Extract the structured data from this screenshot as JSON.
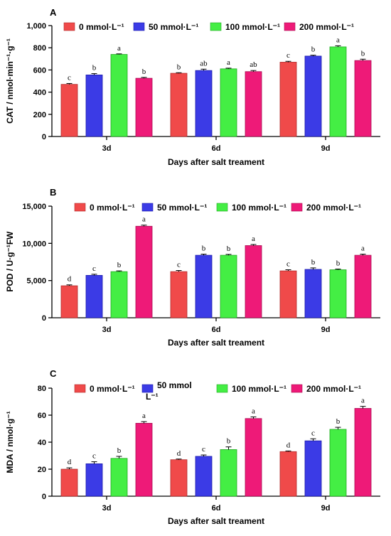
{
  "chart_data": [
    {
      "type": "bar",
      "panel": "A",
      "ylabel": "CAT / nmol·min⁻¹·g⁻¹",
      "xlabel": "Days after salt treament",
      "categories": [
        "3d",
        "6d",
        "9d"
      ],
      "ylim": [
        0,
        1000
      ],
      "yticks": [
        "0",
        "200",
        "400",
        "600",
        "800",
        "1,000"
      ],
      "ytick_values": [
        0,
        200,
        400,
        600,
        800,
        1000
      ],
      "series": [
        {
          "name": "0 mmol·L⁻¹",
          "values": [
            470,
            570,
            670
          ],
          "errors": [
            8,
            5,
            8
          ],
          "letters": [
            "c",
            "b",
            "c"
          ]
        },
        {
          "name": "50 mmol·L⁻¹",
          "values": [
            555,
            595,
            725
          ],
          "errors": [
            12,
            12,
            8
          ],
          "letters": [
            "b",
            "ab",
            "b"
          ]
        },
        {
          "name": "100 mmol·L⁻¹",
          "values": [
            740,
            610,
            808
          ],
          "errors": [
            5,
            6,
            10
          ],
          "letters": [
            "a",
            "a",
            "a"
          ]
        },
        {
          "name": "200 mmol·L⁻¹",
          "values": [
            525,
            585,
            685
          ],
          "errors": [
            8,
            10,
            12
          ],
          "letters": [
            "b",
            "ab",
            "b"
          ]
        }
      ]
    },
    {
      "type": "bar",
      "panel": "B",
      "ylabel": "POD / U·g⁻¹FW",
      "xlabel": "Days after salt treament",
      "categories": [
        "3d",
        "6d",
        "9d"
      ],
      "ylim": [
        0,
        15000
      ],
      "yticks": [
        "0",
        "5,000",
        "10,000",
        "15,000"
      ],
      "ytick_values": [
        0,
        5000,
        10000,
        15000
      ],
      "series": [
        {
          "name": "0 mmol·L⁻¹",
          "values": [
            4300,
            6200,
            6300
          ],
          "errors": [
            120,
            150,
            150
          ],
          "letters": [
            "d",
            "c",
            "c"
          ]
        },
        {
          "name": "50 mmol·L⁻¹",
          "values": [
            5700,
            8400,
            6500
          ],
          "errors": [
            150,
            150,
            200
          ],
          "letters": [
            "c",
            "b",
            "b"
          ]
        },
        {
          "name": "100 mmol·L⁻¹",
          "values": [
            6200,
            8400,
            6450
          ],
          "errors": [
            100,
            120,
            100
          ],
          "letters": [
            "b",
            "b",
            "b"
          ]
        },
        {
          "name": "200 mmol·L⁻¹",
          "values": [
            12300,
            9700,
            8400
          ],
          "errors": [
            150,
            150,
            150
          ],
          "letters": [
            "a",
            "a",
            "a"
          ]
        }
      ]
    },
    {
      "type": "bar",
      "panel": "C",
      "ylabel": "MDA / nmol·g⁻¹",
      "xlabel": "Days after salt treament",
      "categories": [
        "3d",
        "6d",
        "9d"
      ],
      "ylim": [
        0,
        80
      ],
      "yticks": [
        "0",
        "20",
        "40",
        "60",
        "80"
      ],
      "ytick_values": [
        0,
        20,
        40,
        60,
        80
      ],
      "series": [
        {
          "name": "0 mmol·L⁻¹",
          "values": [
            20,
            27,
            33
          ],
          "errors": [
            1,
            0.5,
            0.5
          ],
          "letters": [
            "d",
            "d",
            "d"
          ]
        },
        {
          "name": "50 mmol·L⁻¹",
          "values": [
            24,
            29.5,
            41
          ],
          "errors": [
            1.5,
            1,
            1.5
          ],
          "letters": [
            "c",
            "c",
            "c"
          ]
        },
        {
          "name": "100 mmol·L⁻¹",
          "values": [
            28,
            34.5,
            49.5
          ],
          "errors": [
            1.5,
            2,
            1.5
          ],
          "letters": [
            "b",
            "b",
            "b"
          ]
        },
        {
          "name": "200 mmol·L⁻¹",
          "values": [
            54,
            57.5,
            65
          ],
          "errors": [
            1.2,
            1.2,
            1.5
          ],
          "letters": [
            "a",
            "a",
            "a"
          ]
        }
      ]
    }
  ],
  "colors": {
    "series": [
      "#f04a4a",
      "#3b3be6",
      "#44ee44",
      "#ee1a78"
    ],
    "series_edge": [
      "#b02a2a",
      "#1a1aa8",
      "#22a822",
      "#a80a50"
    ]
  }
}
